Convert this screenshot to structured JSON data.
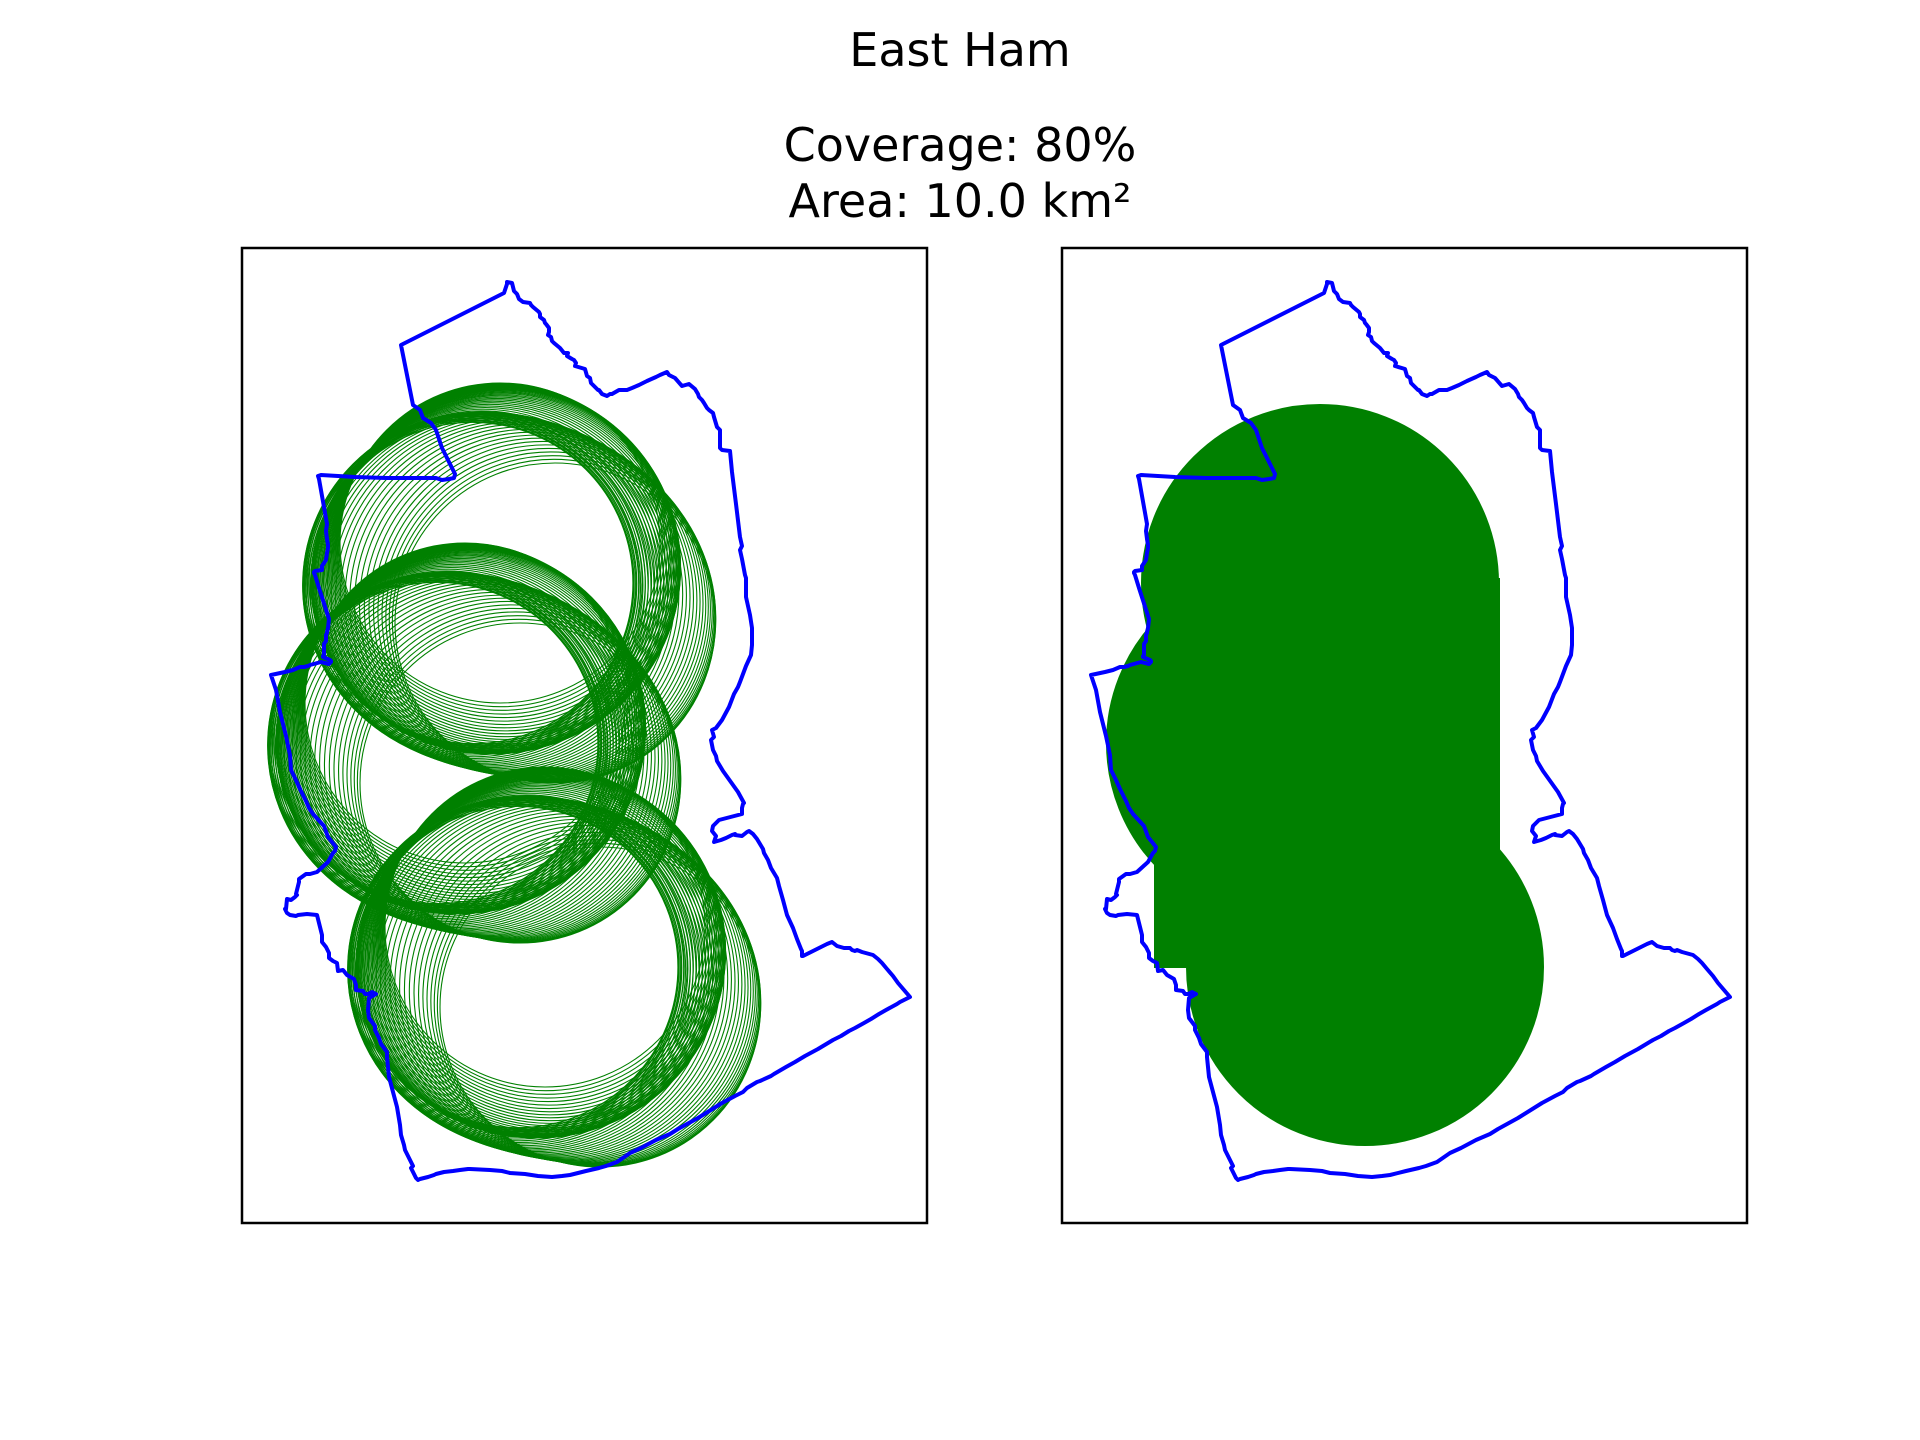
{
  "chart_data": {
    "type": "map",
    "title": "East Ham",
    "coverage_text": "Coverage: 80%",
    "area_text": "Area: 10.0 km²",
    "colors": {
      "boundary": "#0000ff",
      "coverage": "#008000",
      "frame": "#000000",
      "background": "#ffffff"
    },
    "panels": [
      {
        "name": "coverage-circles-outlined",
        "style": "many overlapping circle outlines"
      },
      {
        "name": "coverage-circles-filled",
        "style": "solid filled union of circles"
      }
    ],
    "axes": {
      "ticks": false,
      "grid": false,
      "legend": "none"
    }
  }
}
